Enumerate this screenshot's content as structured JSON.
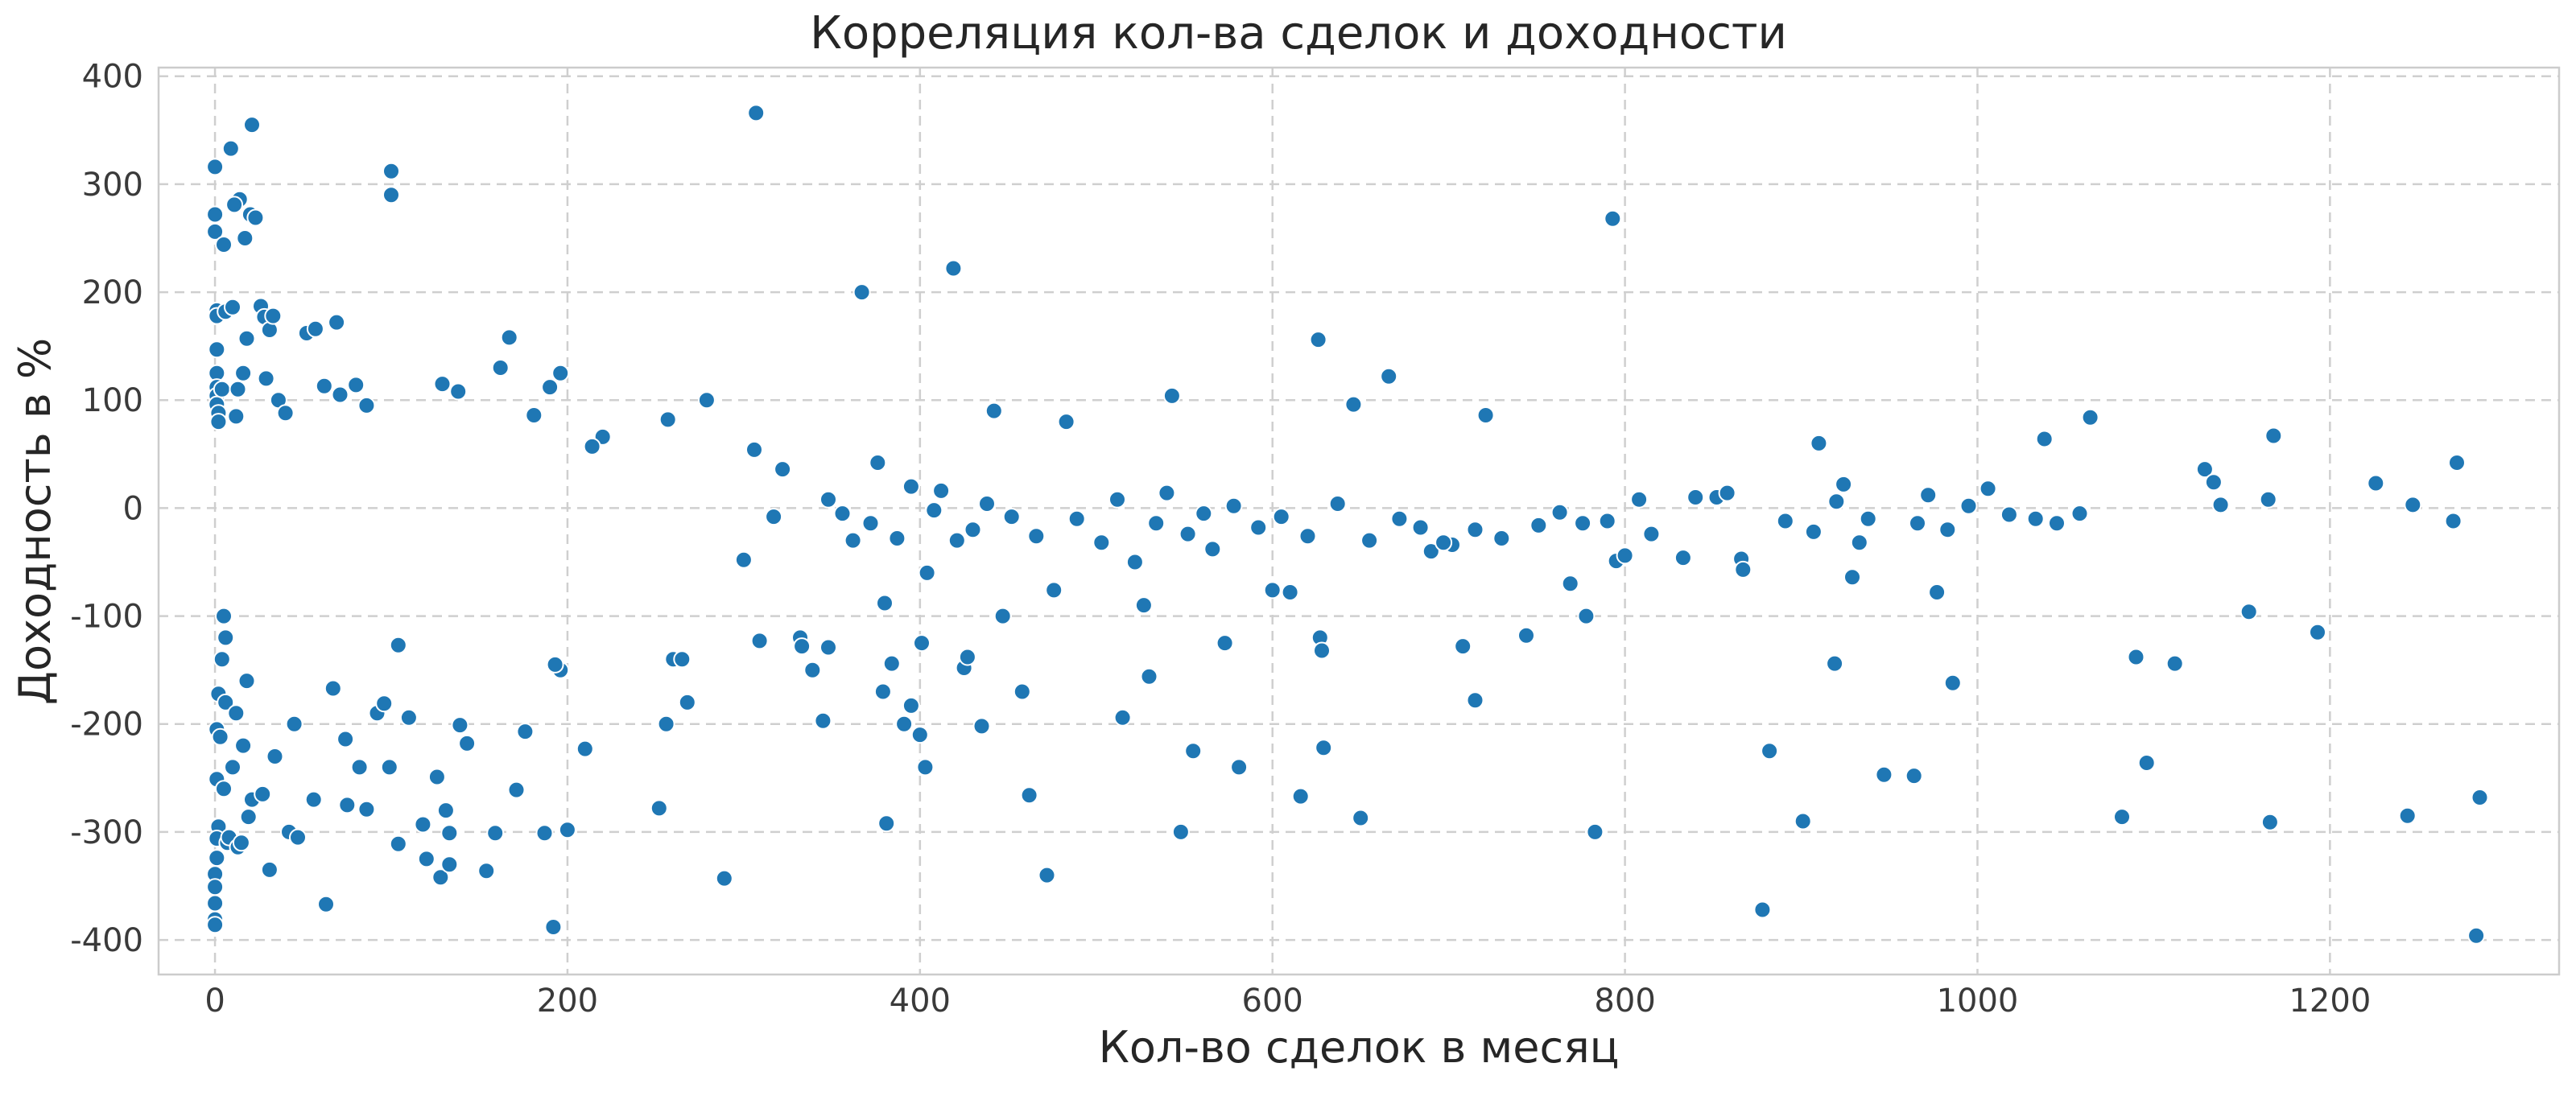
{
  "chart_data": {
    "type": "scatter",
    "title": "Корреляция кол-ва сделок и доходности",
    "xlabel": "Кол-во сделок в месяц",
    "ylabel": "Доходность в %",
    "xlim": [
      -32,
      1330
    ],
    "ylim": [
      -432,
      408
    ],
    "xticks": [
      0,
      200,
      400,
      600,
      800,
      1000,
      1200
    ],
    "yticks": [
      400,
      300,
      200,
      100,
      0,
      -100,
      -200,
      -300,
      -400
    ],
    "grid": true,
    "color": "#1f77b4",
    "series": [
      {
        "points": [
          [
            0,
            316
          ],
          [
            0,
            272
          ],
          [
            0,
            256
          ],
          [
            1,
            183
          ],
          [
            1,
            178
          ],
          [
            1,
            147
          ],
          [
            1,
            125
          ],
          [
            1,
            112
          ],
          [
            1,
            104
          ],
          [
            1,
            96
          ],
          [
            2,
            88
          ],
          [
            2,
            80
          ],
          [
            2,
            -172
          ],
          [
            1,
            -205
          ],
          [
            1,
            -251
          ],
          [
            2,
            -295
          ],
          [
            1,
            -306
          ],
          [
            1,
            -324
          ],
          [
            0,
            -339
          ],
          [
            0,
            -351
          ],
          [
            0,
            -366
          ],
          [
            0,
            -381
          ],
          [
            0,
            -386
          ],
          [
            5,
            244
          ],
          [
            6,
            182
          ],
          [
            4,
            110
          ],
          [
            3,
            -212
          ],
          [
            6,
            -180
          ],
          [
            5,
            -260
          ],
          [
            7,
            -310
          ],
          [
            5,
            -100
          ],
          [
            4,
            -140
          ],
          [
            6,
            -120
          ],
          [
            9,
            333
          ],
          [
            14,
            286
          ],
          [
            11,
            281
          ],
          [
            17,
            250
          ],
          [
            20,
            272
          ],
          [
            23,
            269
          ],
          [
            21,
            355
          ],
          [
            18,
            157
          ],
          [
            16,
            125
          ],
          [
            13,
            110
          ],
          [
            10,
            186
          ],
          [
            12,
            85
          ],
          [
            8,
            -305
          ],
          [
            13,
            -314
          ],
          [
            15,
            -310
          ],
          [
            19,
            -286
          ],
          [
            21,
            -270
          ],
          [
            10,
            -240
          ],
          [
            16,
            -220
          ],
          [
            12,
            -190
          ],
          [
            18,
            -160
          ],
          [
            26,
            187
          ],
          [
            28,
            177
          ],
          [
            31,
            165
          ],
          [
            33,
            178
          ],
          [
            29,
            120
          ],
          [
            36,
            100
          ],
          [
            40,
            88
          ],
          [
            27,
            -265
          ],
          [
            31,
            -335
          ],
          [
            42,
            -300
          ],
          [
            47,
            -305
          ],
          [
            34,
            -230
          ],
          [
            45,
            -200
          ],
          [
            52,
            162
          ],
          [
            57,
            166
          ],
          [
            69,
            172
          ],
          [
            62,
            113
          ],
          [
            71,
            105
          ],
          [
            80,
            114
          ],
          [
            86,
            95
          ],
          [
            56,
            -270
          ],
          [
            63,
            -367
          ],
          [
            67,
            -167
          ],
          [
            74,
            -214
          ],
          [
            75,
            -275
          ],
          [
            82,
            -240
          ],
          [
            86,
            -279
          ],
          [
            92,
            -190
          ],
          [
            96,
            -181
          ],
          [
            100,
            312
          ],
          [
            100,
            290
          ],
          [
            104,
            -127
          ],
          [
            99,
            -240
          ],
          [
            104,
            -311
          ],
          [
            110,
            -194
          ],
          [
            118,
            -293
          ],
          [
            120,
            -325
          ],
          [
            126,
            -249
          ],
          [
            128,
            -342
          ],
          [
            133,
            -301
          ],
          [
            133,
            -330
          ],
          [
            131,
            -280
          ],
          [
            143,
            -218
          ],
          [
            139,
            -201
          ],
          [
            154,
            -336
          ],
          [
            159,
            -301
          ],
          [
            176,
            -207
          ],
          [
            187,
            -301
          ],
          [
            192,
            -388
          ],
          [
            171,
            -261
          ],
          [
            200,
            -298
          ],
          [
            210,
            -223
          ],
          [
            196,
            -150
          ],
          [
            193,
            -145
          ],
          [
            167,
            158
          ],
          [
            162,
            130
          ],
          [
            196,
            125
          ],
          [
            190,
            112
          ],
          [
            181,
            86
          ],
          [
            129,
            115
          ],
          [
            138,
            108
          ],
          [
            220,
            66
          ],
          [
            214,
            57
          ],
          [
            252,
            -278
          ],
          [
            256,
            -200
          ],
          [
            260,
            -140
          ],
          [
            265,
            -140
          ],
          [
            268,
            -180
          ],
          [
            279,
            100
          ],
          [
            257,
            82
          ],
          [
            289,
            -343
          ],
          [
            309,
            -123
          ],
          [
            307,
            366
          ],
          [
            306,
            54
          ],
          [
            322,
            36
          ],
          [
            317,
            -8
          ],
          [
            300,
            -48
          ],
          [
            332,
            -120
          ],
          [
            333,
            -128
          ],
          [
            339,
            -150
          ],
          [
            345,
            -197
          ],
          [
            348,
            -129
          ],
          [
            367,
            200
          ],
          [
            376,
            42
          ],
          [
            380,
            -88
          ],
          [
            379,
            -170
          ],
          [
            381,
            -292
          ],
          [
            384,
            -144
          ],
          [
            391,
            -200
          ],
          [
            395,
            -183
          ],
          [
            400,
            -210
          ],
          [
            401,
            -125
          ],
          [
            403,
            -240
          ],
          [
            404,
            -60
          ],
          [
            419,
            222
          ],
          [
            421,
            -30
          ],
          [
            425,
            -148
          ],
          [
            427,
            -138
          ],
          [
            435,
            -202
          ],
          [
            442,
            90
          ],
          [
            447,
            -100
          ],
          [
            458,
            -170
          ],
          [
            462,
            -266
          ],
          [
            472,
            -340
          ],
          [
            476,
            -76
          ],
          [
            483,
            80
          ],
          [
            515,
            -194
          ],
          [
            522,
            -50
          ],
          [
            527,
            -90
          ],
          [
            530,
            -156
          ],
          [
            543,
            104
          ],
          [
            548,
            -300
          ],
          [
            555,
            -225
          ],
          [
            561,
            -5
          ],
          [
            573,
            -125
          ],
          [
            581,
            -240
          ],
          [
            600,
            -76
          ],
          [
            610,
            -78
          ],
          [
            616,
            -267
          ],
          [
            626,
            156
          ],
          [
            627,
            -120
          ],
          [
            628,
            -132
          ],
          [
            629,
            -222
          ],
          [
            646,
            96
          ],
          [
            650,
            -287
          ],
          [
            666,
            122
          ],
          [
            690,
            -40
          ],
          [
            702,
            -34
          ],
          [
            708,
            -128
          ],
          [
            715,
            -178
          ],
          [
            721,
            86
          ],
          [
            744,
            -118
          ],
          [
            769,
            -70
          ],
          [
            778,
            -100
          ],
          [
            783,
            -300
          ],
          [
            793,
            268
          ],
          [
            795,
            -49
          ],
          [
            800,
            -44
          ],
          [
            808,
            8
          ],
          [
            833,
            -46
          ],
          [
            852,
            10
          ],
          [
            866,
            -47
          ],
          [
            867,
            -57
          ],
          [
            878,
            -372
          ],
          [
            882,
            -225
          ],
          [
            901,
            -290
          ],
          [
            910,
            60
          ],
          [
            919,
            -144
          ],
          [
            924,
            22
          ],
          [
            929,
            -64
          ],
          [
            933,
            -32
          ],
          [
            947,
            -247
          ],
          [
            964,
            -248
          ],
          [
            972,
            12
          ],
          [
            977,
            -78
          ],
          [
            983,
            -20
          ],
          [
            986,
            -162
          ],
          [
            1006,
            18
          ],
          [
            1033,
            -10
          ],
          [
            1038,
            64
          ],
          [
            1058,
            -5
          ],
          [
            1064,
            84
          ],
          [
            1082,
            -286
          ],
          [
            1090,
            -138
          ],
          [
            1096,
            -236
          ],
          [
            1112,
            -144
          ],
          [
            1129,
            36
          ],
          [
            1134,
            24
          ],
          [
            1138,
            3
          ],
          [
            1154,
            -96
          ],
          [
            1165,
            8
          ],
          [
            1166,
            -291
          ],
          [
            1168,
            67
          ],
          [
            1193,
            -115
          ],
          [
            1226,
            23
          ],
          [
            1244,
            -285
          ],
          [
            1247,
            3
          ],
          [
            1270,
            -12
          ],
          [
            1272,
            42
          ],
          [
            1283,
            -396
          ],
          [
            1285,
            -268
          ],
          [
            348,
            8
          ],
          [
            356,
            -5
          ],
          [
            362,
            -30
          ],
          [
            372,
            -14
          ],
          [
            387,
            -28
          ],
          [
            395,
            20
          ],
          [
            408,
            -2
          ],
          [
            412,
            16
          ],
          [
            430,
            -20
          ],
          [
            438,
            4
          ],
          [
            452,
            -8
          ],
          [
            466,
            -26
          ],
          [
            489,
            -10
          ],
          [
            503,
            -32
          ],
          [
            512,
            8
          ],
          [
            534,
            -14
          ],
          [
            540,
            14
          ],
          [
            552,
            -24
          ],
          [
            566,
            -38
          ],
          [
            578,
            2
          ],
          [
            592,
            -18
          ],
          [
            605,
            -8
          ],
          [
            620,
            -26
          ],
          [
            637,
            4
          ],
          [
            655,
            -30
          ],
          [
            672,
            -10
          ],
          [
            684,
            -18
          ],
          [
            697,
            -32
          ],
          [
            715,
            -20
          ],
          [
            730,
            -28
          ],
          [
            751,
            -16
          ],
          [
            763,
            -4
          ],
          [
            776,
            -14
          ],
          [
            790,
            -12
          ],
          [
            815,
            -24
          ],
          [
            840,
            10
          ],
          [
            858,
            14
          ],
          [
            891,
            -12
          ],
          [
            907,
            -22
          ],
          [
            920,
            6
          ],
          [
            938,
            -10
          ],
          [
            966,
            -14
          ],
          [
            995,
            2
          ],
          [
            1018,
            -6
          ],
          [
            1045,
            -14
          ]
        ]
      }
    ]
  }
}
